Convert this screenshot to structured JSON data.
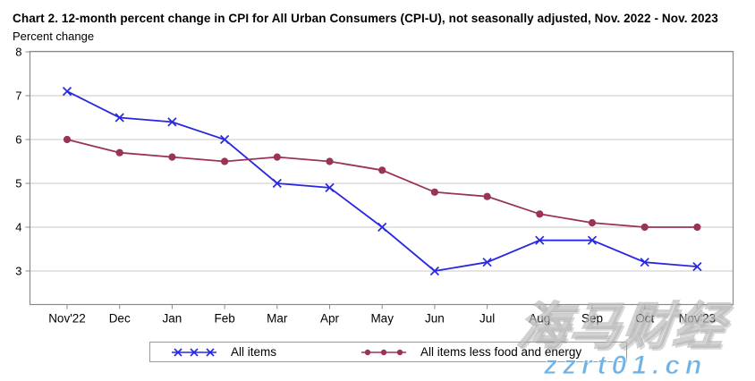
{
  "chart_data": {
    "type": "line",
    "title": "Chart 2. 12-month percent change in CPI for All Urban Consumers (CPI-U), not seasonally adjusted, Nov. 2022 - Nov. 2023",
    "ylabel": "Percent change",
    "xlabel": "",
    "categories": [
      "Nov'22",
      "Dec",
      "Jan",
      "Feb",
      "Mar",
      "Apr",
      "May",
      "Jun",
      "Jul",
      "Aug",
      "Sep",
      "Oct",
      "Nov'23"
    ],
    "series": [
      {
        "name": "All items",
        "marker": "x",
        "color": "#2828e1",
        "values": [
          7.1,
          6.5,
          6.4,
          6.0,
          5.0,
          4.9,
          4.0,
          3.0,
          3.2,
          3.7,
          3.7,
          3.2,
          3.1
        ]
      },
      {
        "name": "All items less food and energy",
        "marker": "circle",
        "color": "#993358",
        "values": [
          6.0,
          5.7,
          5.6,
          5.5,
          5.6,
          5.5,
          5.3,
          4.8,
          4.7,
          4.3,
          4.1,
          4.0,
          4.0
        ]
      }
    ],
    "yticks": [
      3,
      4,
      5,
      6,
      7,
      8
    ],
    "ylim": [
      2.25,
      8
    ],
    "grid": true,
    "legend_position": "bottom",
    "colors": {
      "axis": "#8a8a8a",
      "gridline": "#c8c8c8",
      "text": "#000000",
      "plot_background": "#ffffff"
    }
  },
  "watermark": {
    "cn_text": "海马财经",
    "url_text": "zzrt01.cn",
    "url_color": "#6fb3e6"
  }
}
